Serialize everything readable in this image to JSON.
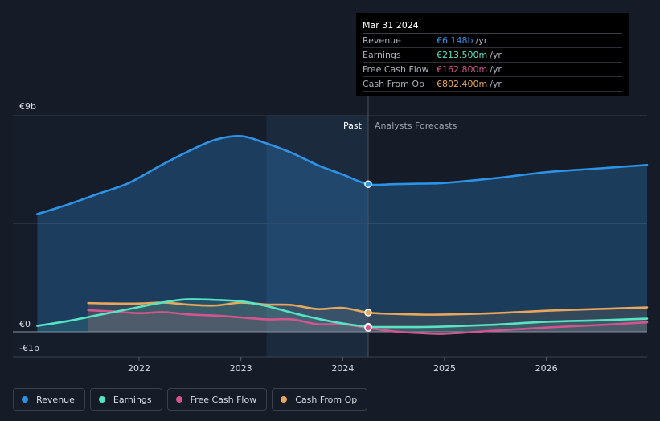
{
  "chart_data": {
    "type": "line",
    "currency": "€",
    "y_axis_labels": [
      "€9b",
      "€0",
      "-€1b"
    ],
    "ylim": [
      -1,
      9
    ],
    "x_tick_labels": [
      "2022",
      "2023",
      "2024",
      "2025",
      "2026"
    ],
    "x_ticks": [
      2022,
      2023,
      2024,
      2025,
      2026
    ],
    "xlim": [
      2020.76,
      2026.99
    ],
    "forecast_start": 2024.25,
    "past_label": "Past",
    "forecast_label": "Analysts Forecasts",
    "series": [
      {
        "name": "Revenue",
        "color": "#2e93e6",
        "area": true,
        "points": [
          [
            2021.0,
            4.9
          ],
          [
            2021.3,
            5.3
          ],
          [
            2021.6,
            5.75
          ],
          [
            2021.9,
            6.2
          ],
          [
            2022.2,
            6.9
          ],
          [
            2022.5,
            7.55
          ],
          [
            2022.75,
            8.0
          ],
          [
            2023.0,
            8.15
          ],
          [
            2023.25,
            7.85
          ],
          [
            2023.5,
            7.45
          ],
          [
            2023.75,
            6.95
          ],
          [
            2024.0,
            6.55
          ],
          [
            2024.25,
            6.148
          ],
          [
            2024.5,
            6.15
          ],
          [
            2024.75,
            6.17
          ],
          [
            2025.0,
            6.2
          ],
          [
            2025.5,
            6.4
          ],
          [
            2026.0,
            6.65
          ],
          [
            2026.5,
            6.8
          ],
          [
            2026.99,
            6.95
          ]
        ]
      },
      {
        "name": "Earnings",
        "color": "#58e3c4",
        "area": true,
        "points": [
          [
            2021.0,
            0.25
          ],
          [
            2021.3,
            0.45
          ],
          [
            2021.6,
            0.7
          ],
          [
            2021.9,
            0.95
          ],
          [
            2022.2,
            1.2
          ],
          [
            2022.45,
            1.35
          ],
          [
            2022.75,
            1.33
          ],
          [
            2023.0,
            1.27
          ],
          [
            2023.25,
            1.08
          ],
          [
            2023.5,
            0.8
          ],
          [
            2023.75,
            0.55
          ],
          [
            2024.0,
            0.35
          ],
          [
            2024.25,
            0.2135
          ],
          [
            2024.5,
            0.2
          ],
          [
            2024.75,
            0.2
          ],
          [
            2025.0,
            0.22
          ],
          [
            2025.5,
            0.3
          ],
          [
            2026.0,
            0.42
          ],
          [
            2026.5,
            0.48
          ],
          [
            2026.99,
            0.55
          ]
        ]
      },
      {
        "name": "Free Cash Flow",
        "color": "#d4558e",
        "area": true,
        "points": [
          [
            2021.5,
            0.9
          ],
          [
            2021.75,
            0.85
          ],
          [
            2022.0,
            0.78
          ],
          [
            2022.25,
            0.82
          ],
          [
            2022.5,
            0.72
          ],
          [
            2022.75,
            0.68
          ],
          [
            2023.0,
            0.6
          ],
          [
            2023.25,
            0.52
          ],
          [
            2023.5,
            0.52
          ],
          [
            2023.75,
            0.32
          ],
          [
            2024.0,
            0.32
          ],
          [
            2024.25,
            0.1628
          ],
          [
            2024.5,
            0.02
          ],
          [
            2024.75,
            -0.05
          ],
          [
            2025.0,
            -0.08
          ],
          [
            2025.5,
            0.05
          ],
          [
            2026.0,
            0.18
          ],
          [
            2026.5,
            0.28
          ],
          [
            2026.99,
            0.4
          ]
        ]
      },
      {
        "name": "Cash From Op",
        "color": "#e8a75b",
        "area": true,
        "points": [
          [
            2021.5,
            1.2
          ],
          [
            2021.75,
            1.18
          ],
          [
            2022.0,
            1.18
          ],
          [
            2022.25,
            1.22
          ],
          [
            2022.5,
            1.13
          ],
          [
            2022.75,
            1.1
          ],
          [
            2023.0,
            1.22
          ],
          [
            2023.25,
            1.14
          ],
          [
            2023.5,
            1.12
          ],
          [
            2023.75,
            0.95
          ],
          [
            2024.0,
            1.0
          ],
          [
            2024.25,
            0.8024
          ],
          [
            2024.5,
            0.75
          ],
          [
            2024.75,
            0.72
          ],
          [
            2025.0,
            0.72
          ],
          [
            2025.5,
            0.78
          ],
          [
            2026.0,
            0.88
          ],
          [
            2026.5,
            0.95
          ],
          [
            2026.99,
            1.02
          ]
        ]
      }
    ]
  },
  "tooltip": {
    "date": "Mar 31 2024",
    "rows": [
      {
        "label": "Revenue",
        "value": "€6.148b",
        "unit": "/yr",
        "color": "#2e93e6"
      },
      {
        "label": "Earnings",
        "value": "€213.500m",
        "unit": "/yr",
        "color": "#58e3c4"
      },
      {
        "label": "Free Cash Flow",
        "value": "€162.800m",
        "unit": "/yr",
        "color": "#d4558e"
      },
      {
        "label": "Cash From Op",
        "value": "€802.400m",
        "unit": "/yr",
        "color": "#e8a75b"
      }
    ]
  },
  "legend": {
    "items": [
      {
        "label": "Revenue",
        "color": "#2e93e6"
      },
      {
        "label": "Earnings",
        "color": "#58e3c4"
      },
      {
        "label": "Free Cash Flow",
        "color": "#d4558e"
      },
      {
        "label": "Cash From Op",
        "color": "#e8a75b"
      }
    ]
  }
}
